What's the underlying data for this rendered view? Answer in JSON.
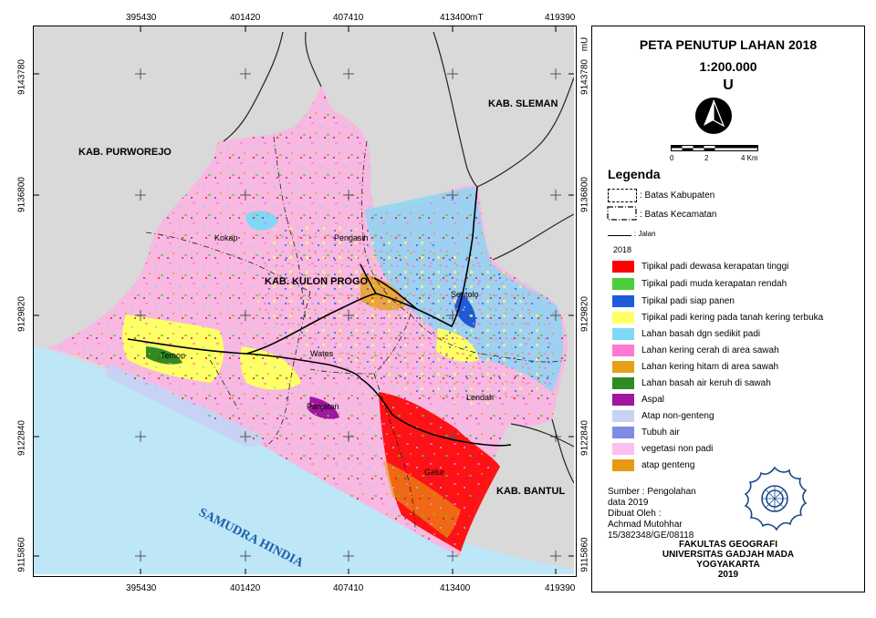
{
  "map": {
    "top_eastings": [
      "395430",
      "401420",
      "407410",
      "413400",
      "419390"
    ],
    "top_unit": "mT",
    "bottom_eastings": [
      "395430",
      "401420",
      "407410",
      "413400",
      "419390"
    ],
    "left_northings": [
      "9143780",
      "9136800",
      "9129820",
      "9122840",
      "9115860"
    ],
    "right_northings": [
      "9143780",
      "9136800",
      "9129820",
      "9122840",
      "9115860"
    ],
    "right_unit": "mU",
    "region_labels": {
      "purworejo": "KAB. PURWOREJO",
      "sleman": "KAB. SLEMAN",
      "kulon_progo": "KAB. KULON PROGO",
      "bantul": "KAB. BANTUL",
      "sea": "SAMUDRA HINDIA"
    },
    "district_labels": {
      "kokap": "Kokap",
      "pengasih": "Pengasih",
      "sentolo": "Sentolo",
      "temon": "Temon",
      "wates": "Wates",
      "panjatan": "Panjatan",
      "lendah": "Lendah",
      "galur": "Galur"
    },
    "colors": {
      "outside": "#d9d9d9",
      "sea": "#bde6f7",
      "land_base": "#f7b8e2"
    }
  },
  "legend": {
    "title": "PETA PENUTUP LAHAN 2018",
    "scale": "1:200.000",
    "north": "U",
    "scalebar_ticks": [
      "0",
      "2",
      "4 Km"
    ],
    "heading": "Legenda",
    "lines": [
      {
        "label": ": Batas Kabupaten",
        "style": "dashed-box"
      },
      {
        "label": ": Batas Kecamatan",
        "style": "dashdot-box"
      },
      {
        "label": ": Jalan",
        "style": "line"
      }
    ],
    "year": "2018",
    "classes": [
      {
        "label": "Tipikal padi dewasa kerapatan tinggi",
        "color": "#ff0000"
      },
      {
        "label": "Tipikal padi muda kerapatan rendah",
        "color": "#4ccd3c"
      },
      {
        "label": "Tipikal padi siap panen",
        "color": "#1e5adc"
      },
      {
        "label": "Tipikal padi kering pada tanah kering terbuka",
        "color": "#ffff66"
      },
      {
        "label": "Lahan basah dgn sedikit padi",
        "color": "#7fd8f5"
      },
      {
        "label": "Lahan kering cerah di area sawah",
        "color": "#ff78d2"
      },
      {
        "label": "Lahan kering hitam di area sawah",
        "color": "#e6a014"
      },
      {
        "label": "Lahan basah air keruh di sawah",
        "color": "#2e8b22"
      },
      {
        "label": "Aspal",
        "color": "#a0169e"
      },
      {
        "label": "Atap non-genteng",
        "color": "#c8d2f5"
      },
      {
        "label": "Tubuh air",
        "color": "#7f8ce6"
      },
      {
        "label": "vegetasi non padi",
        "color": "#fbbef0"
      },
      {
        "label": "atap genteng",
        "color": "#e69a14"
      }
    ],
    "source_lines": [
      "Sumber : Pengolahan",
      "data 2019",
      "Dibuat Oleh :",
      "Achmad Mutohhar",
      "15/382348/GE/08118"
    ],
    "institution_lines": [
      "FAKULTAS GEOGRAFI",
      "UNIVERSITAS GADJAH MADA",
      "YOGYAKARTA",
      "2019"
    ]
  }
}
